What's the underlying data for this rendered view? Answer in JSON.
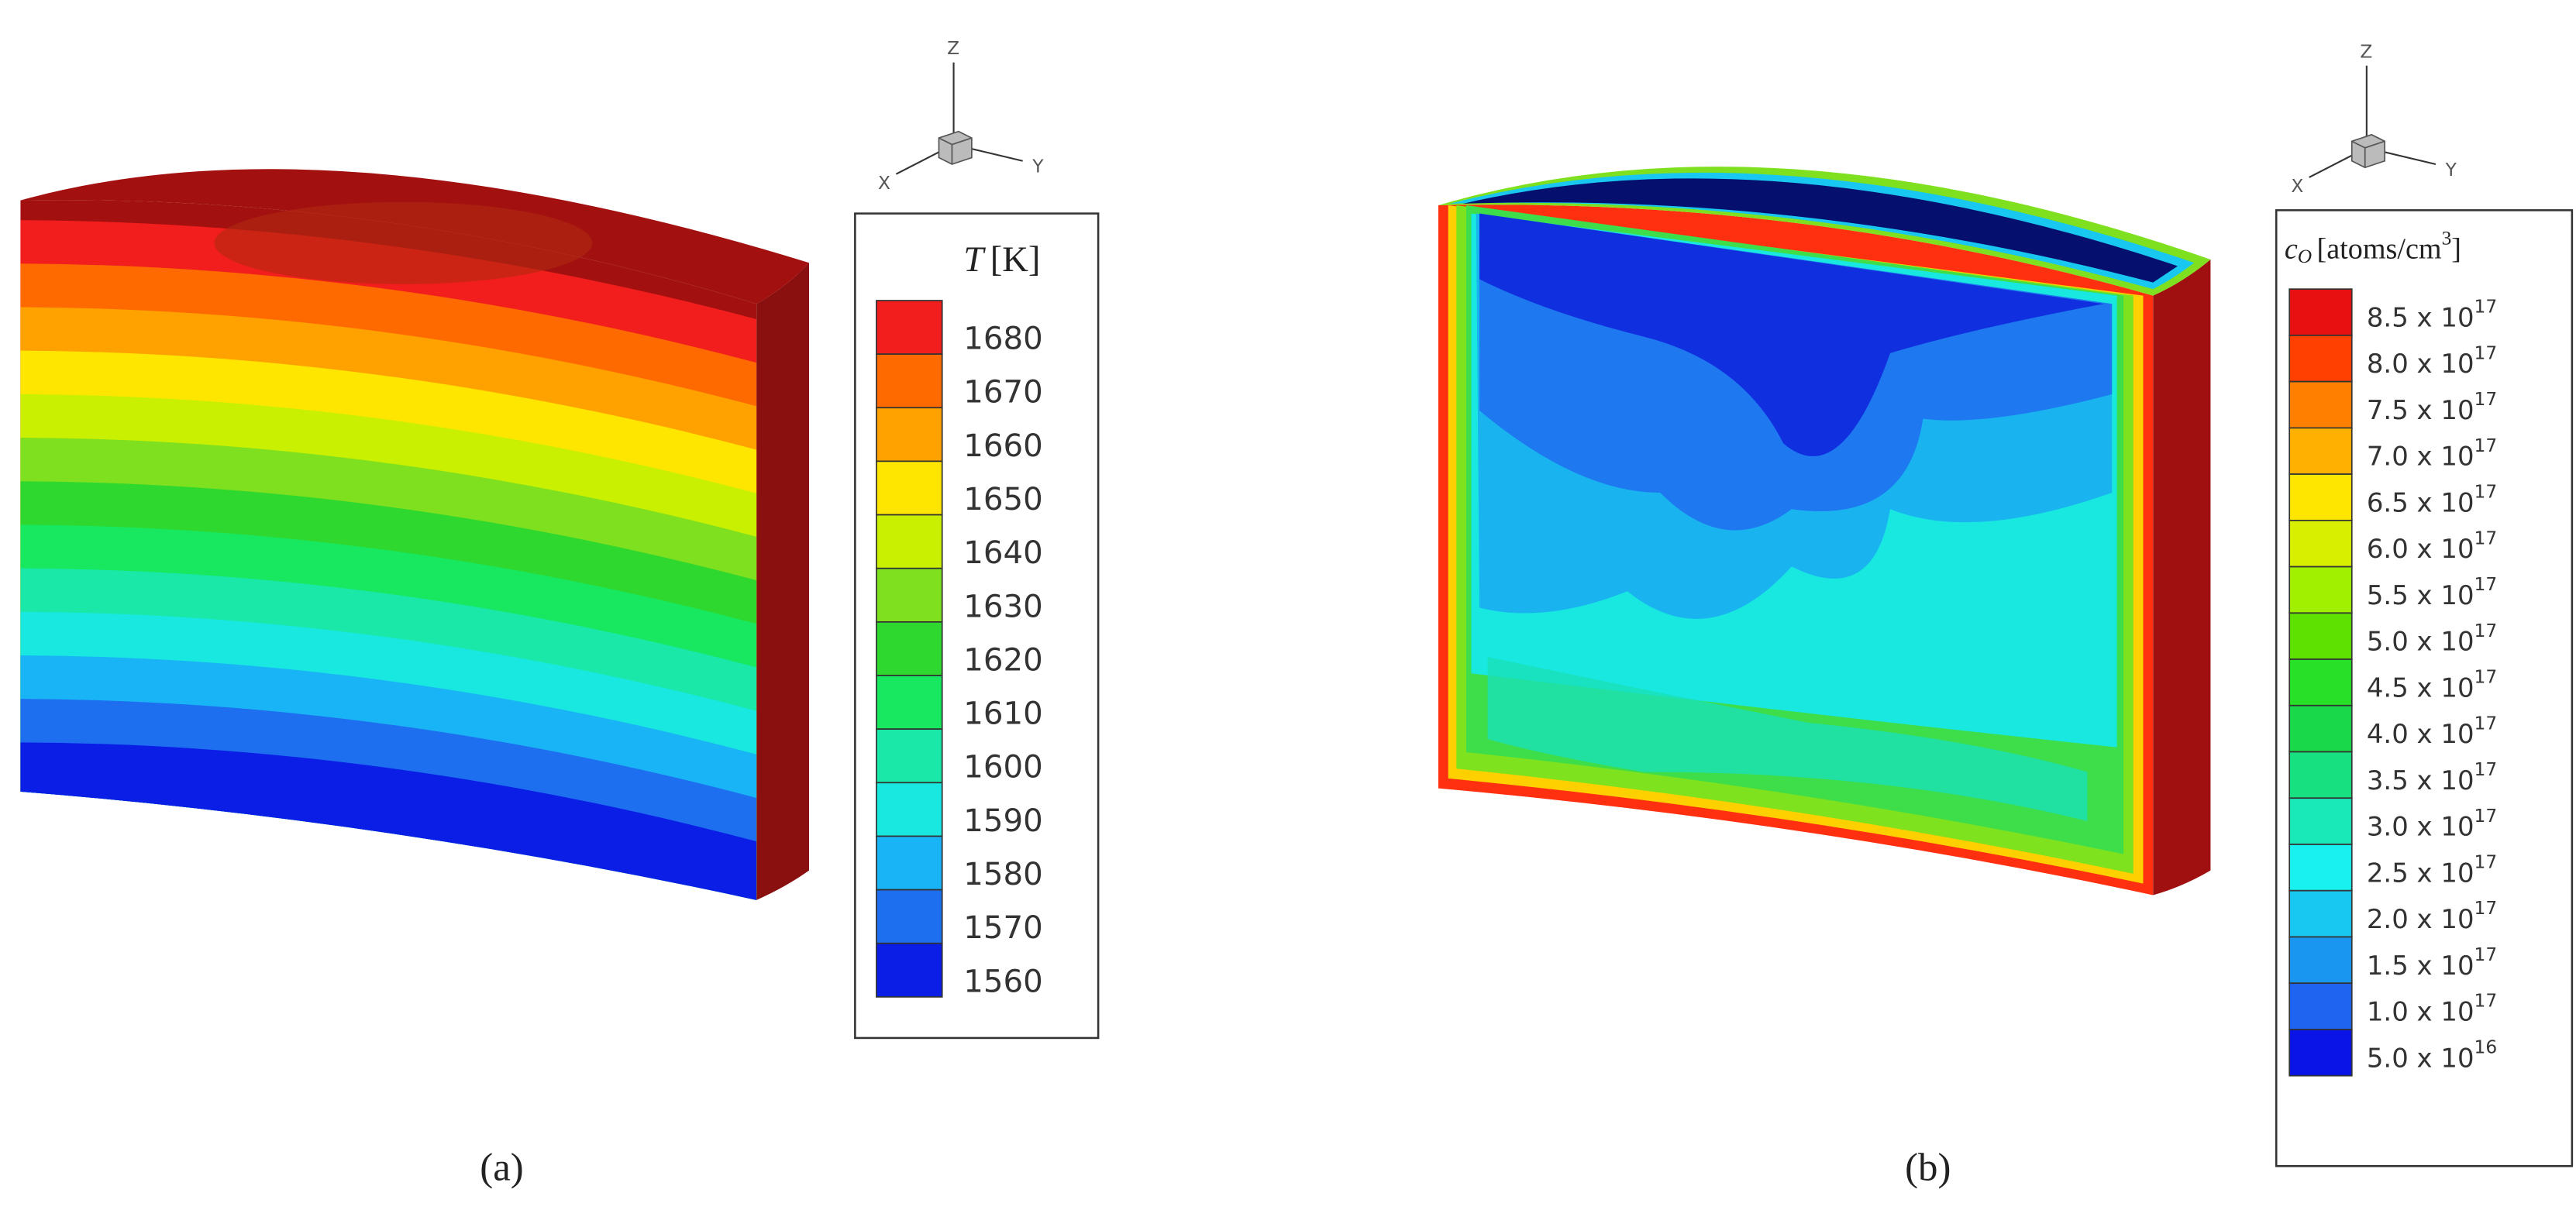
{
  "panels": [
    {
      "label": "(a)",
      "triad": {
        "z": "Z",
        "x": "X",
        "y": "Y"
      },
      "legend": {
        "title": {
          "symbol": "T",
          "unit": "[K]"
        },
        "entries": [
          {
            "text": "1680",
            "color": "#f21d1d"
          },
          {
            "text": "1670",
            "color": "#ff6a00"
          },
          {
            "text": "1660",
            "color": "#ffa200"
          },
          {
            "text": "1650",
            "color": "#ffe600"
          },
          {
            "text": "1640",
            "color": "#c8f000"
          },
          {
            "text": "1630",
            "color": "#7ee01e"
          },
          {
            "text": "1620",
            "color": "#2ed82e"
          },
          {
            "text": "1610",
            "color": "#17e860"
          },
          {
            "text": "1600",
            "color": "#19e8a8"
          },
          {
            "text": "1590",
            "color": "#19e8e0"
          },
          {
            "text": "1580",
            "color": "#19b4f5"
          },
          {
            "text": "1570",
            "color": "#1e6ef0"
          },
          {
            "text": "1560",
            "color": "#0a1ee6"
          }
        ]
      }
    },
    {
      "label": "(b)",
      "triad": {
        "z": "Z",
        "x": "X",
        "y": "Y"
      },
      "legend": {
        "title": {
          "symbol": "c",
          "subscript": "O",
          "unit": "[atoms/cm",
          "unit_exponent": "3",
          "unit_close": "]"
        },
        "entries": [
          {
            "mantissa": "8.5 x 10",
            "exponent": "17",
            "color": "#e81010"
          },
          {
            "mantissa": "8.0 x 10",
            "exponent": "17",
            "color": "#ff4000"
          },
          {
            "mantissa": "7.5 x 10",
            "exponent": "17",
            "color": "#ff8000"
          },
          {
            "mantissa": "7.0 x 10",
            "exponent": "17",
            "color": "#ffb000"
          },
          {
            "mantissa": "6.5 x 10",
            "exponent": "17",
            "color": "#ffe600"
          },
          {
            "mantissa": "6.0 x 10",
            "exponent": "17",
            "color": "#d8f000"
          },
          {
            "mantissa": "5.5 x 10",
            "exponent": "17",
            "color": "#a0f000"
          },
          {
            "mantissa": "5.0 x 10",
            "exponent": "17",
            "color": "#5ee000"
          },
          {
            "mantissa": "4.5 x 10",
            "exponent": "17",
            "color": "#28e028"
          },
          {
            "mantissa": "4.0 x 10",
            "exponent": "17",
            "color": "#19d94a"
          },
          {
            "mantissa": "3.5 x 10",
            "exponent": "17",
            "color": "#17e080"
          },
          {
            "mantissa": "3.0 x 10",
            "exponent": "17",
            "color": "#19e8b8"
          },
          {
            "mantissa": "2.5 x 10",
            "exponent": "17",
            "color": "#19f0f0"
          },
          {
            "mantissa": "2.0 x 10",
            "exponent": "17",
            "color": "#19c8f0"
          },
          {
            "mantissa": "1.5 x 10",
            "exponent": "17",
            "color": "#1996f0"
          },
          {
            "mantissa": "1.0 x 10",
            "exponent": "17",
            "color": "#1e64f0"
          },
          {
            "mantissa": "5.0 x 10",
            "exponent": "16",
            "color": "#0a14e6"
          }
        ]
      }
    }
  ]
}
